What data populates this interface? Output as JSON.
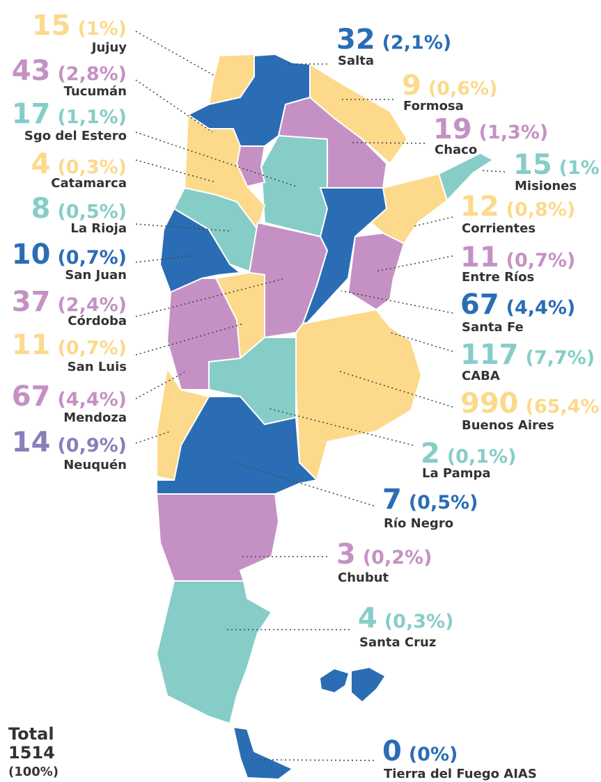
{
  "provinces": [
    {
      "name": "Jujuy",
      "count": 15,
      "share": "(1%)",
      "color": "#fcd98b"
    },
    {
      "name": "Tucumán",
      "count": 43,
      "share": "(2,8%)",
      "color": "#c591c4"
    },
    {
      "name": "Sgo del Estero",
      "count": 17,
      "share": "(1,1%)",
      "color": "#86cdc8"
    },
    {
      "name": "Catamarca",
      "count": 4,
      "share": "(0,3%)",
      "color": "#fcd98b"
    },
    {
      "name": "La Rioja",
      "count": 8,
      "share": "(0,5%)",
      "color": "#86cdc8"
    },
    {
      "name": "San Juan",
      "count": 10,
      "share": "(0,7%)",
      "color": "#2a6db5"
    },
    {
      "name": "Córdoba",
      "count": 37,
      "share": "(2,4%)",
      "color": "#c591c4"
    },
    {
      "name": "San Luis",
      "count": 11,
      "share": "(0,7%)",
      "color": "#fcd98b"
    },
    {
      "name": "Mendoza",
      "count": 67,
      "share": "(4,4%)",
      "color": "#c591c4"
    },
    {
      "name": "Neuquén",
      "count": 14,
      "share": "(0,9%)",
      "color": "#8a7fb9"
    },
    {
      "name": "Salta",
      "count": 32,
      "share": "(2,1%)",
      "color": "#2a6db5"
    },
    {
      "name": "Formosa",
      "count": 9,
      "share": "(0,6%)",
      "color": "#fcd98b"
    },
    {
      "name": "Chaco",
      "count": 19,
      "share": "(1,3%)",
      "color": "#c591c4"
    },
    {
      "name": "Misiones",
      "count": 15,
      "share": "(1%)",
      "color": "#86cdc8"
    },
    {
      "name": "Corrientes",
      "count": 12,
      "share": "(0,8%)",
      "color": "#fcd98b"
    },
    {
      "name": "Entre Ríos",
      "count": 11,
      "share": "(0,7%)",
      "color": "#c591c4"
    },
    {
      "name": "Santa Fe",
      "count": 67,
      "share": "(4,4%)",
      "color": "#2a6db5"
    },
    {
      "name": "CABA",
      "count": 117,
      "share": "(7,7%)",
      "color": "#86cdc8"
    },
    {
      "name": "Buenos Aires",
      "count": 990,
      "share": "(65,4%)",
      "color": "#fcd98b"
    },
    {
      "name": "La Pampa",
      "count": 2,
      "share": "(0,1%)",
      "color": "#86cdc8"
    },
    {
      "name": "Río Negro",
      "count": 7,
      "share": "(0,5%)",
      "color": "#2a6db5"
    },
    {
      "name": "Chubut",
      "count": 3,
      "share": "(0,2%)",
      "color": "#c591c4"
    },
    {
      "name": "Santa Cruz",
      "count": 4,
      "share": "(0,3%)",
      "color": "#86cdc8"
    },
    {
      "name": "Tierra del Fuego AIAS",
      "count": 0,
      "share": "(0%)",
      "color": "#2a6db5"
    }
  ],
  "total": {
    "label": "Total",
    "value": 1514,
    "share": "(100%)"
  }
}
